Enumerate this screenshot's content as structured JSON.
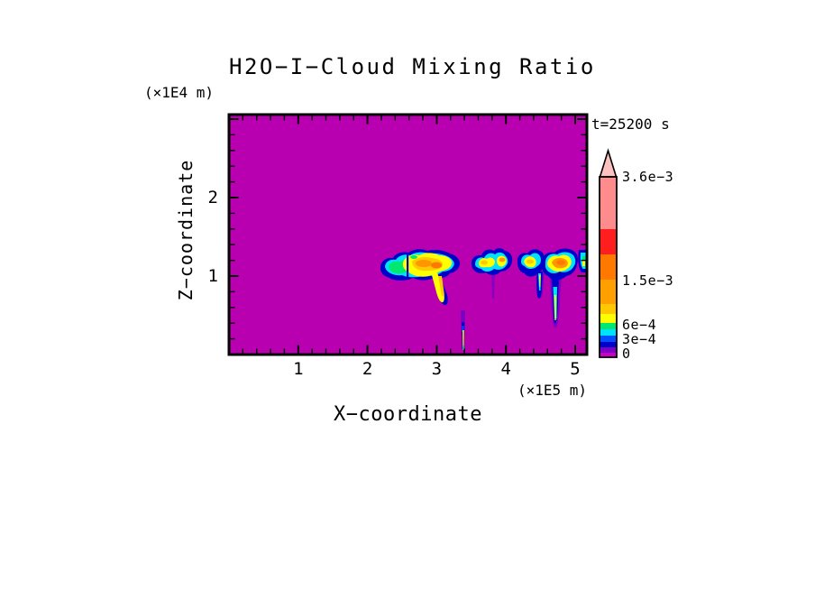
{
  "title": "H2O−I−Cloud Mixing Ratio",
  "time_annotation": "t=25200 s",
  "axes": {
    "x": {
      "label": "X−coordinate",
      "unit": "(×1E5 m)",
      "tick_labels": [
        "1",
        "2",
        "3",
        "4",
        "5"
      ]
    },
    "z": {
      "label": "Z−coordinate",
      "unit": "(×1E4 m)",
      "tick_labels": [
        "1",
        "2"
      ]
    }
  },
  "chart_data": {
    "type": "heatmap",
    "subtype": "filled-contour",
    "title": "H2O-I-Cloud Mixing Ratio",
    "time_annotation": "t=25200 s",
    "xlabel": "X-coordinate",
    "x_unit": "×1E5 m",
    "ylabel": "Z-coordinate",
    "y_unit": "×1E4 m",
    "x_range": [
      0,
      5.17
    ],
    "y_range": [
      0,
      3.06
    ],
    "x_major_ticks": [
      1,
      2,
      3,
      4,
      5
    ],
    "y_major_ticks": [
      1,
      2
    ],
    "minor_tick_interval": 0.2,
    "grid": false,
    "legend_position": "right-colorbar",
    "background_value": 0,
    "background_color": "#B900B0",
    "colorbar": {
      "levels": [
        0,
        0.0001,
        0.0002,
        0.0003,
        0.0004,
        0.0005,
        0.0006,
        0.0008,
        0.001,
        0.0015,
        0.002,
        0.0025,
        0.0036
      ],
      "colors": [
        "#C800C8",
        "#7A00C4",
        "#0000C8",
        "#0050FF",
        "#00E0FF",
        "#00E86E",
        "#FFFF00",
        "#FFC800",
        "#FFA000",
        "#FF7800",
        "#FF1E1E",
        "#FF8C8C"
      ],
      "overflow_arrow_color": "#FFC0C0",
      "label_texts": [
        "3.6e−3",
        "1.5e−3",
        "6e−4",
        "3e−4",
        "0"
      ],
      "label_values": [
        0.0036,
        0.0015,
        0.0006,
        0.0003,
        0
      ]
    },
    "features": [
      {
        "name": "west-cloud-band",
        "x_extent": [
          2.2,
          3.36
        ],
        "z_extent": [
          0.93,
          1.33
        ],
        "peak_value": 0.0013,
        "fallstreak": {
          "x": 3.12,
          "z_bottom": 0.66
        }
      },
      {
        "name": "west-precip-streak",
        "x_extent": [
          3.34,
          3.41
        ],
        "z_extent": [
          0.06,
          0.56
        ],
        "peak_value": 0.0007
      },
      {
        "name": "central-cloud",
        "x_extent": [
          3.5,
          4.07
        ],
        "z_extent": [
          1.0,
          1.37
        ],
        "peak_value": 0.0012,
        "virga_wisp": {
          "x": 3.81,
          "z_bottom": 0.71
        }
      },
      {
        "name": "east-cloud",
        "x_extent": [
          4.17,
          4.95
        ],
        "z_extent": [
          0.93,
          1.37
        ],
        "peak_value": 0.0018,
        "fallstreak": {
          "x": 4.68,
          "z_bottom": 0.36
        }
      },
      {
        "name": "east-boundary-patch",
        "x_extent": [
          5.05,
          5.17
        ],
        "z_extent": [
          1.05,
          1.36
        ],
        "peak_value": 0.0007
      }
    ]
  }
}
